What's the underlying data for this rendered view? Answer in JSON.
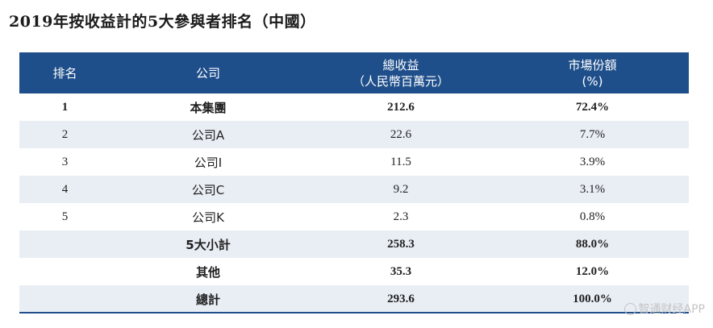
{
  "title": "2019年按收益計的5大參與者排名（中國）",
  "headers": {
    "rank": "排名",
    "company": "公司",
    "revenue_line1": "總收益",
    "revenue_line2": "（人民幣百萬元）",
    "share_line1": "市場份額",
    "share_line2": "(%)"
  },
  "rows": [
    {
      "rank": "1",
      "company": "本集團",
      "revenue": "212.6",
      "share": "72.4%"
    },
    {
      "rank": "2",
      "company": "公司A",
      "revenue": "22.6",
      "share": "7.7%"
    },
    {
      "rank": "3",
      "company": "公司I",
      "revenue": "11.5",
      "share": "3.9%"
    },
    {
      "rank": "4",
      "company": "公司C",
      "revenue": "9.2",
      "share": "3.1%"
    },
    {
      "rank": "5",
      "company": "公司K",
      "revenue": "2.3",
      "share": "0.8%"
    },
    {
      "rank": "",
      "company": "5大小計",
      "revenue": "258.3",
      "share": "88.0%"
    },
    {
      "rank": "",
      "company": "其他",
      "revenue": "35.3",
      "share": "12.0%"
    },
    {
      "rank": "",
      "company": "總計",
      "revenue": "293.6",
      "share": "100.0%"
    }
  ],
  "watermark": "智通财经APP",
  "colors": {
    "header_bg": "#1f4f8b",
    "alt_row": "#e9eef5"
  }
}
